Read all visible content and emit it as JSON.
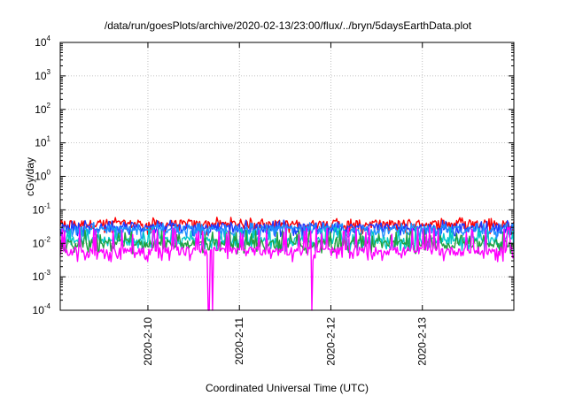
{
  "chart_data": {
    "type": "line",
    "title": "/data/run/goesPlots/archive/2020-02-13/23:00/flux/../bryn/5daysEarthData.plot",
    "xlabel": "Coordinated Universal Time (UTC)",
    "ylabel": "cGy/day",
    "y_scale": "log",
    "ylim": [
      0.0001,
      10000
    ],
    "y_ticks": [
      {
        "base": "10",
        "exp": "-4",
        "value": 0.0001
      },
      {
        "base": "10",
        "exp": "-3",
        "value": 0.001
      },
      {
        "base": "10",
        "exp": "-2",
        "value": 0.01
      },
      {
        "base": "10",
        "exp": "-1",
        "value": 0.1
      },
      {
        "base": "10",
        "exp": "0",
        "value": 1
      },
      {
        "base": "10",
        "exp": "1",
        "value": 10
      },
      {
        "base": "10",
        "exp": "2",
        "value": 100
      },
      {
        "base": "10",
        "exp": "3",
        "value": 1000
      },
      {
        "base": "10",
        "exp": "4",
        "value": 10000
      }
    ],
    "x_range": [
      "2020-02-09 01:00",
      "2020-02-14 00:00"
    ],
    "x_ticks": [
      "2020-2-10",
      "2020-2-11",
      "2020-2-12",
      "2020-2-13"
    ],
    "grid": true,
    "legend": "none",
    "series": [
      {
        "color": "#ff0000",
        "typical": 0.038,
        "low": 0.022,
        "high": 0.06
      },
      {
        "color": "#1c3aff",
        "typical": 0.03,
        "low": 0.02,
        "high": 0.05
      },
      {
        "color": "#1e90ff",
        "typical": 0.025,
        "low": 0.016,
        "high": 0.042
      },
      {
        "color": "#00c8c8",
        "typical": 0.012,
        "low": 0.007,
        "high": 0.03
      },
      {
        "color": "#20a040",
        "typical": 0.01,
        "low": 0.006,
        "high": 0.025
      },
      {
        "color": "#ff00ff",
        "typical": 0.006,
        "low": 0.0035,
        "high": 0.03,
        "dropouts": [
          "2020-02-10 16:00",
          "2020-02-10 16:55",
          "2020-02-11 19:00"
        ]
      }
    ]
  }
}
